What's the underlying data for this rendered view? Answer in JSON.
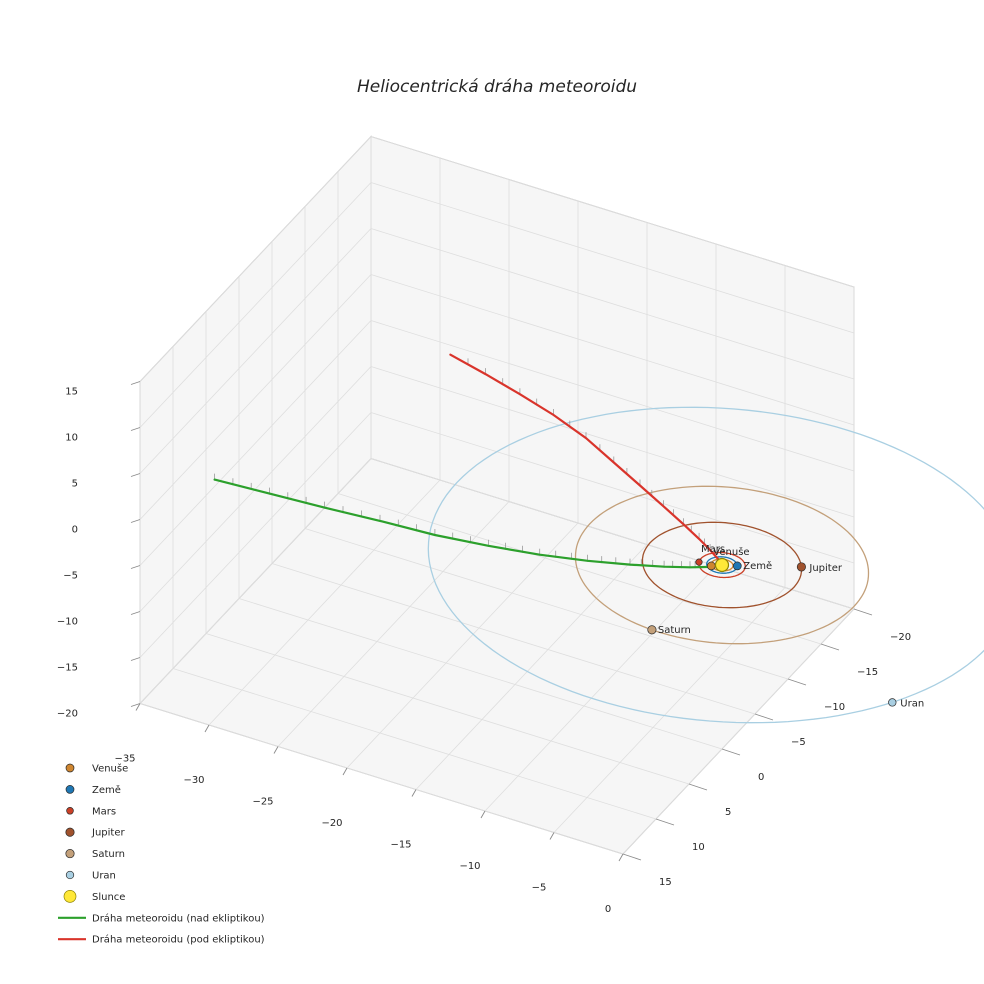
{
  "chart_data": {
    "type": "line",
    "subtype": "3d-orthographic-projection",
    "title": "Heliocentrická dráha meteoroidu",
    "background": "#ffffff",
    "pane_color": "#f6f6f6",
    "pane_edge_color": "#c6c6c6",
    "grid_color": "#dedede",
    "tick_color": "#8a8a8a",
    "text_color": "#262626",
    "axes": {
      "x": {
        "range": [
          -35,
          0
        ],
        "ticks": [
          -35,
          -30,
          -25,
          -20,
          -15,
          -10,
          -5,
          0
        ]
      },
      "y": {
        "range": [
          -20,
          15
        ],
        "ticks": [
          -20,
          -15,
          -10,
          -5,
          0,
          5,
          10,
          15
        ]
      },
      "z": {
        "range": [
          -20,
          15
        ],
        "ticks": [
          -20,
          -15,
          -10,
          -5,
          0,
          5,
          10,
          15
        ]
      }
    },
    "sun": {
      "label": "Slunce",
      "color": "#ffe838",
      "edge_color": "#8f8400",
      "position": [
        0,
        0,
        0
      ],
      "marker_px": 6.5
    },
    "planets": [
      {
        "name": "Venuše",
        "color": "#cf8630",
        "orbit_radius": 0.72,
        "angle_deg": 140,
        "marker_px": 4.0,
        "label_offset": [
          2,
          -11
        ]
      },
      {
        "name": "Země",
        "color": "#1f77b4",
        "orbit_radius": 1.0,
        "angle_deg": -25,
        "marker_px": 4.0,
        "label_offset": [
          6,
          3
        ]
      },
      {
        "name": "Mars",
        "color": "#cb4027",
        "orbit_radius": 1.52,
        "angle_deg": 162,
        "marker_px": 3.2,
        "label_offset": [
          2,
          -10
        ]
      },
      {
        "name": "Jupiter",
        "color": "#a0522d",
        "orbit_radius": 5.2,
        "angle_deg": -29,
        "marker_px": 4.2,
        "label_offset": [
          8,
          4
        ]
      },
      {
        "name": "Saturn",
        "color": "#c3a07a",
        "orbit_radius": 9.58,
        "angle_deg": 93,
        "marker_px": 4.2,
        "label_offset": [
          6,
          3
        ]
      },
      {
        "name": "Uran",
        "color": "#a9cfe2",
        "orbit_radius": 19.2,
        "angle_deg": 29,
        "marker_px": 3.8,
        "label_offset": [
          8,
          4
        ]
      }
    ],
    "trajectories": [
      {
        "name": "Dráha meteoroidu (nad ekliptikou)",
        "color": "#2ca02c",
        "points": [
          [
            -30.5,
            13.1,
            5.0
          ],
          [
            -27.0,
            12.1,
            4.35
          ],
          [
            -23.5,
            11.1,
            3.7
          ],
          [
            -20.0,
            10.0,
            3.05
          ],
          [
            -16.5,
            9.0,
            2.4
          ],
          [
            -13.2,
            7.8,
            1.85
          ],
          [
            -10.1,
            6.5,
            1.35
          ],
          [
            -7.3,
            5.1,
            0.92
          ],
          [
            -4.9,
            3.7,
            0.57
          ],
          [
            -3.0,
            2.5,
            0.31
          ],
          [
            -1.6,
            1.5,
            0.14
          ],
          [
            -0.8,
            0.85,
            0.05
          ],
          [
            -0.4,
            0.5,
            0.0
          ]
        ],
        "tick_segments": [
          0,
          11
        ],
        "tick_subdiv": 3
      },
      {
        "name": "Dráha meteoroidu (pod ekliptikou)",
        "color": "#d9342b",
        "points": [
          [
            -0.3,
            -0.35,
            0.0
          ],
          [
            -0.8,
            -0.8,
            -0.1
          ],
          [
            -1.6,
            -1.55,
            -0.3
          ],
          [
            -3.0,
            -2.8,
            -0.7
          ],
          [
            -4.9,
            -4.4,
            -1.2
          ],
          [
            -7.3,
            -6.4,
            -1.9
          ],
          [
            -10.1,
            -8.7,
            -2.7
          ],
          [
            -13.2,
            -11.2,
            -3.55
          ],
          [
            -16.5,
            -13.9,
            -4.5
          ],
          [
            -20.0,
            -16.3,
            -5.45
          ],
          [
            -23.4,
            -18.3,
            -6.3
          ],
          [
            -26.8,
            -20.2,
            -7.15
          ],
          [
            -30.2,
            -22.0,
            -8.0
          ]
        ],
        "tick_segments": [
          2,
          12
        ],
        "tick_subdiv": 2
      }
    ],
    "legend": [
      {
        "label": "Venuše",
        "type": "dot",
        "color": "#cf8630",
        "size": 4.0
      },
      {
        "label": "Země",
        "type": "dot",
        "color": "#1f77b4",
        "size": 4.0
      },
      {
        "label": "Mars",
        "type": "dot",
        "color": "#cb4027",
        "size": 3.4
      },
      {
        "label": "Jupiter",
        "type": "dot",
        "color": "#a0522d",
        "size": 4.2
      },
      {
        "label": "Saturn",
        "type": "dot",
        "color": "#c3a07a",
        "size": 4.2
      },
      {
        "label": "Uran",
        "type": "dot",
        "color": "#a9cfe2",
        "size": 3.8
      },
      {
        "label": "Slunce",
        "type": "dot",
        "color": "#ffe838",
        "edge": "#8f8400",
        "size": 6.0
      },
      {
        "label": "Dráha meteoroidu (nad ekliptikou)",
        "type": "line",
        "color": "#2ca02c"
      },
      {
        "label": "Dráha meteoroidu (pod ekliptikou)",
        "type": "line",
        "color": "#d9342b"
      }
    ]
  }
}
